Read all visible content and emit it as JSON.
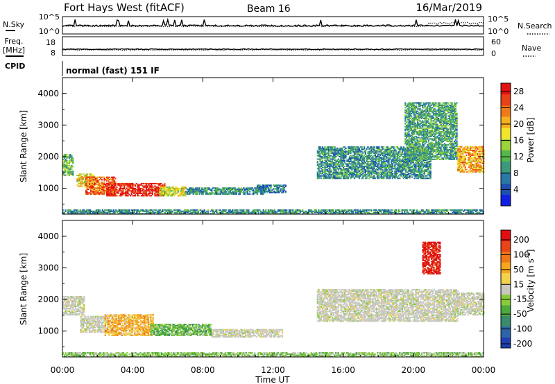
{
  "header": {
    "station": "Fort Hays West (fitACF)",
    "beam": "Beam 16",
    "date": "16/Mar/2019"
  },
  "status_panels": {
    "nsky_label": "N.Sky",
    "nsearch_label": "N.Search",
    "noise_ticks_left": [
      "10^5",
      "10^0"
    ],
    "noise_ticks_right": [
      "10^5",
      "10^0"
    ],
    "freq_label_line1": "Freq.",
    "freq_label_line2": "[MHz]",
    "freq_ticks": [
      "18",
      "8"
    ],
    "nave_label": "Nave",
    "nave_ticks": [
      "60",
      "0"
    ],
    "cpid_label": "CPID",
    "cpid_text": "normal (fast) 151 IF"
  },
  "chart_data": [
    {
      "type": "heatmap",
      "panel": "power",
      "ylabel": "Slant Range [km]",
      "xlabel": "Time UT",
      "xlim": [
        0,
        24
      ],
      "ylim": [
        180,
        4500
      ],
      "y_ticks": [
        1000,
        2000,
        3000,
        4000
      ],
      "x_ticks": [
        "00:00",
        "04:00",
        "08:00",
        "12:00",
        "16:00",
        "20:00",
        "00:00"
      ],
      "x_tick_hours": [
        0,
        4,
        8,
        12,
        16,
        20,
        24
      ],
      "colorbar": {
        "label": "Power [dB]",
        "range": [
          0,
          30
        ],
        "ticks": [
          4,
          8,
          12,
          16,
          20,
          24,
          28
        ],
        "colors": [
          "#1020e0",
          "#1c4fb0",
          "#2a78a8",
          "#3c9a7a",
          "#54b84a",
          "#9cd33a",
          "#f2e62a",
          "#f5b11e",
          "#f07a1a",
          "#e84018",
          "#e31212"
        ]
      },
      "regions": [
        {
          "t0": 0.0,
          "t1": 0.6,
          "r0": 1400,
          "r1": 2050,
          "level": 0.4
        },
        {
          "t0": 0.8,
          "t1": 1.8,
          "r0": 1050,
          "r1": 1450,
          "level": 0.6
        },
        {
          "t0": 1.3,
          "t1": 3.0,
          "r0": 800,
          "r1": 1350,
          "level": 0.8
        },
        {
          "t0": 2.5,
          "t1": 5.8,
          "r0": 750,
          "r1": 1150,
          "level": 0.95
        },
        {
          "t0": 5.5,
          "t1": 7.0,
          "r0": 750,
          "r1": 1050,
          "level": 0.55
        },
        {
          "t0": 7.0,
          "t1": 11.5,
          "r0": 800,
          "r1": 1000,
          "level": 0.3
        },
        {
          "t0": 11.0,
          "t1": 12.7,
          "r0": 850,
          "r1": 1100,
          "level": 0.25
        },
        {
          "t0": 14.5,
          "t1": 21.0,
          "r0": 1300,
          "r1": 2300,
          "level": 0.3
        },
        {
          "t0": 19.5,
          "t1": 22.5,
          "r0": 1900,
          "r1": 3700,
          "level": 0.35
        },
        {
          "t0": 22.5,
          "t1": 24.0,
          "r0": 1500,
          "r1": 2300,
          "level": 0.7
        },
        {
          "t0": 0.0,
          "t1": 24.0,
          "r0": 180,
          "r1": 330,
          "level": 0.3
        }
      ]
    },
    {
      "type": "heatmap",
      "panel": "velocity",
      "ylabel": "Slant Range [km]",
      "xlabel": "Time UT",
      "xlim": [
        0,
        24
      ],
      "ylim": [
        180,
        4500
      ],
      "y_ticks": [
        1000,
        2000,
        3000,
        4000
      ],
      "x_ticks": [
        "00:00",
        "04:00",
        "08:00",
        "12:00",
        "16:00",
        "20:00",
        "00:00"
      ],
      "x_tick_hours": [
        0,
        4,
        8,
        12,
        16,
        20,
        24
      ],
      "colorbar": {
        "label": "Velocity [m s^-1]",
        "ticks": [
          "200",
          "100",
          "50",
          "15",
          "-15",
          "-50",
          "-100",
          "-200"
        ],
        "colors": [
          "#1f3fb0",
          "#2e64a8",
          "#3a8a6e",
          "#4daa3c",
          "#88cc3a",
          "#c8c8c0",
          "#f2d24a",
          "#f5a61e",
          "#f07818",
          "#e84418",
          "#e01010"
        ]
      },
      "regions": [
        {
          "t0": 0.0,
          "t1": 1.2,
          "r0": 1500,
          "r1": 2100,
          "level": 0.5
        },
        {
          "t0": 1.0,
          "t1": 2.6,
          "r0": 950,
          "r1": 1450,
          "level": 0.5
        },
        {
          "t0": 2.4,
          "t1": 5.2,
          "r0": 850,
          "r1": 1500,
          "level": 0.65
        },
        {
          "t0": 5.0,
          "t1": 8.5,
          "r0": 850,
          "r1": 1200,
          "level": 0.35
        },
        {
          "t0": 8.5,
          "t1": 12.5,
          "r0": 800,
          "r1": 1050,
          "level": 0.5
        },
        {
          "t0": 14.5,
          "t1": 22.5,
          "r0": 1300,
          "r1": 2300,
          "level": 0.5
        },
        {
          "t0": 22.5,
          "t1": 24.0,
          "r0": 1500,
          "r1": 2200,
          "level": 0.5
        },
        {
          "t0": 20.5,
          "t1": 21.5,
          "r0": 2800,
          "r1": 3800,
          "level": 0.95
        },
        {
          "t0": 0.0,
          "t1": 24.0,
          "r0": 180,
          "r1": 330,
          "level": 0.4
        }
      ]
    }
  ]
}
